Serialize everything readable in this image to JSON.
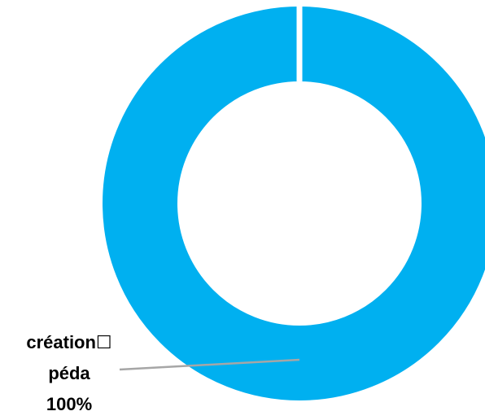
{
  "chart_data": {
    "type": "pie",
    "variant": "donut",
    "title": "",
    "slices": [
      {
        "label": "création☐ péda",
        "label_line1": "création☐",
        "label_line2": "péda",
        "value": 100,
        "value_label": "100%",
        "color": "#00B0F0"
      }
    ],
    "legend": "none",
    "separator_color": "#ffffff",
    "leader_line_color": "#A6A6A6"
  }
}
